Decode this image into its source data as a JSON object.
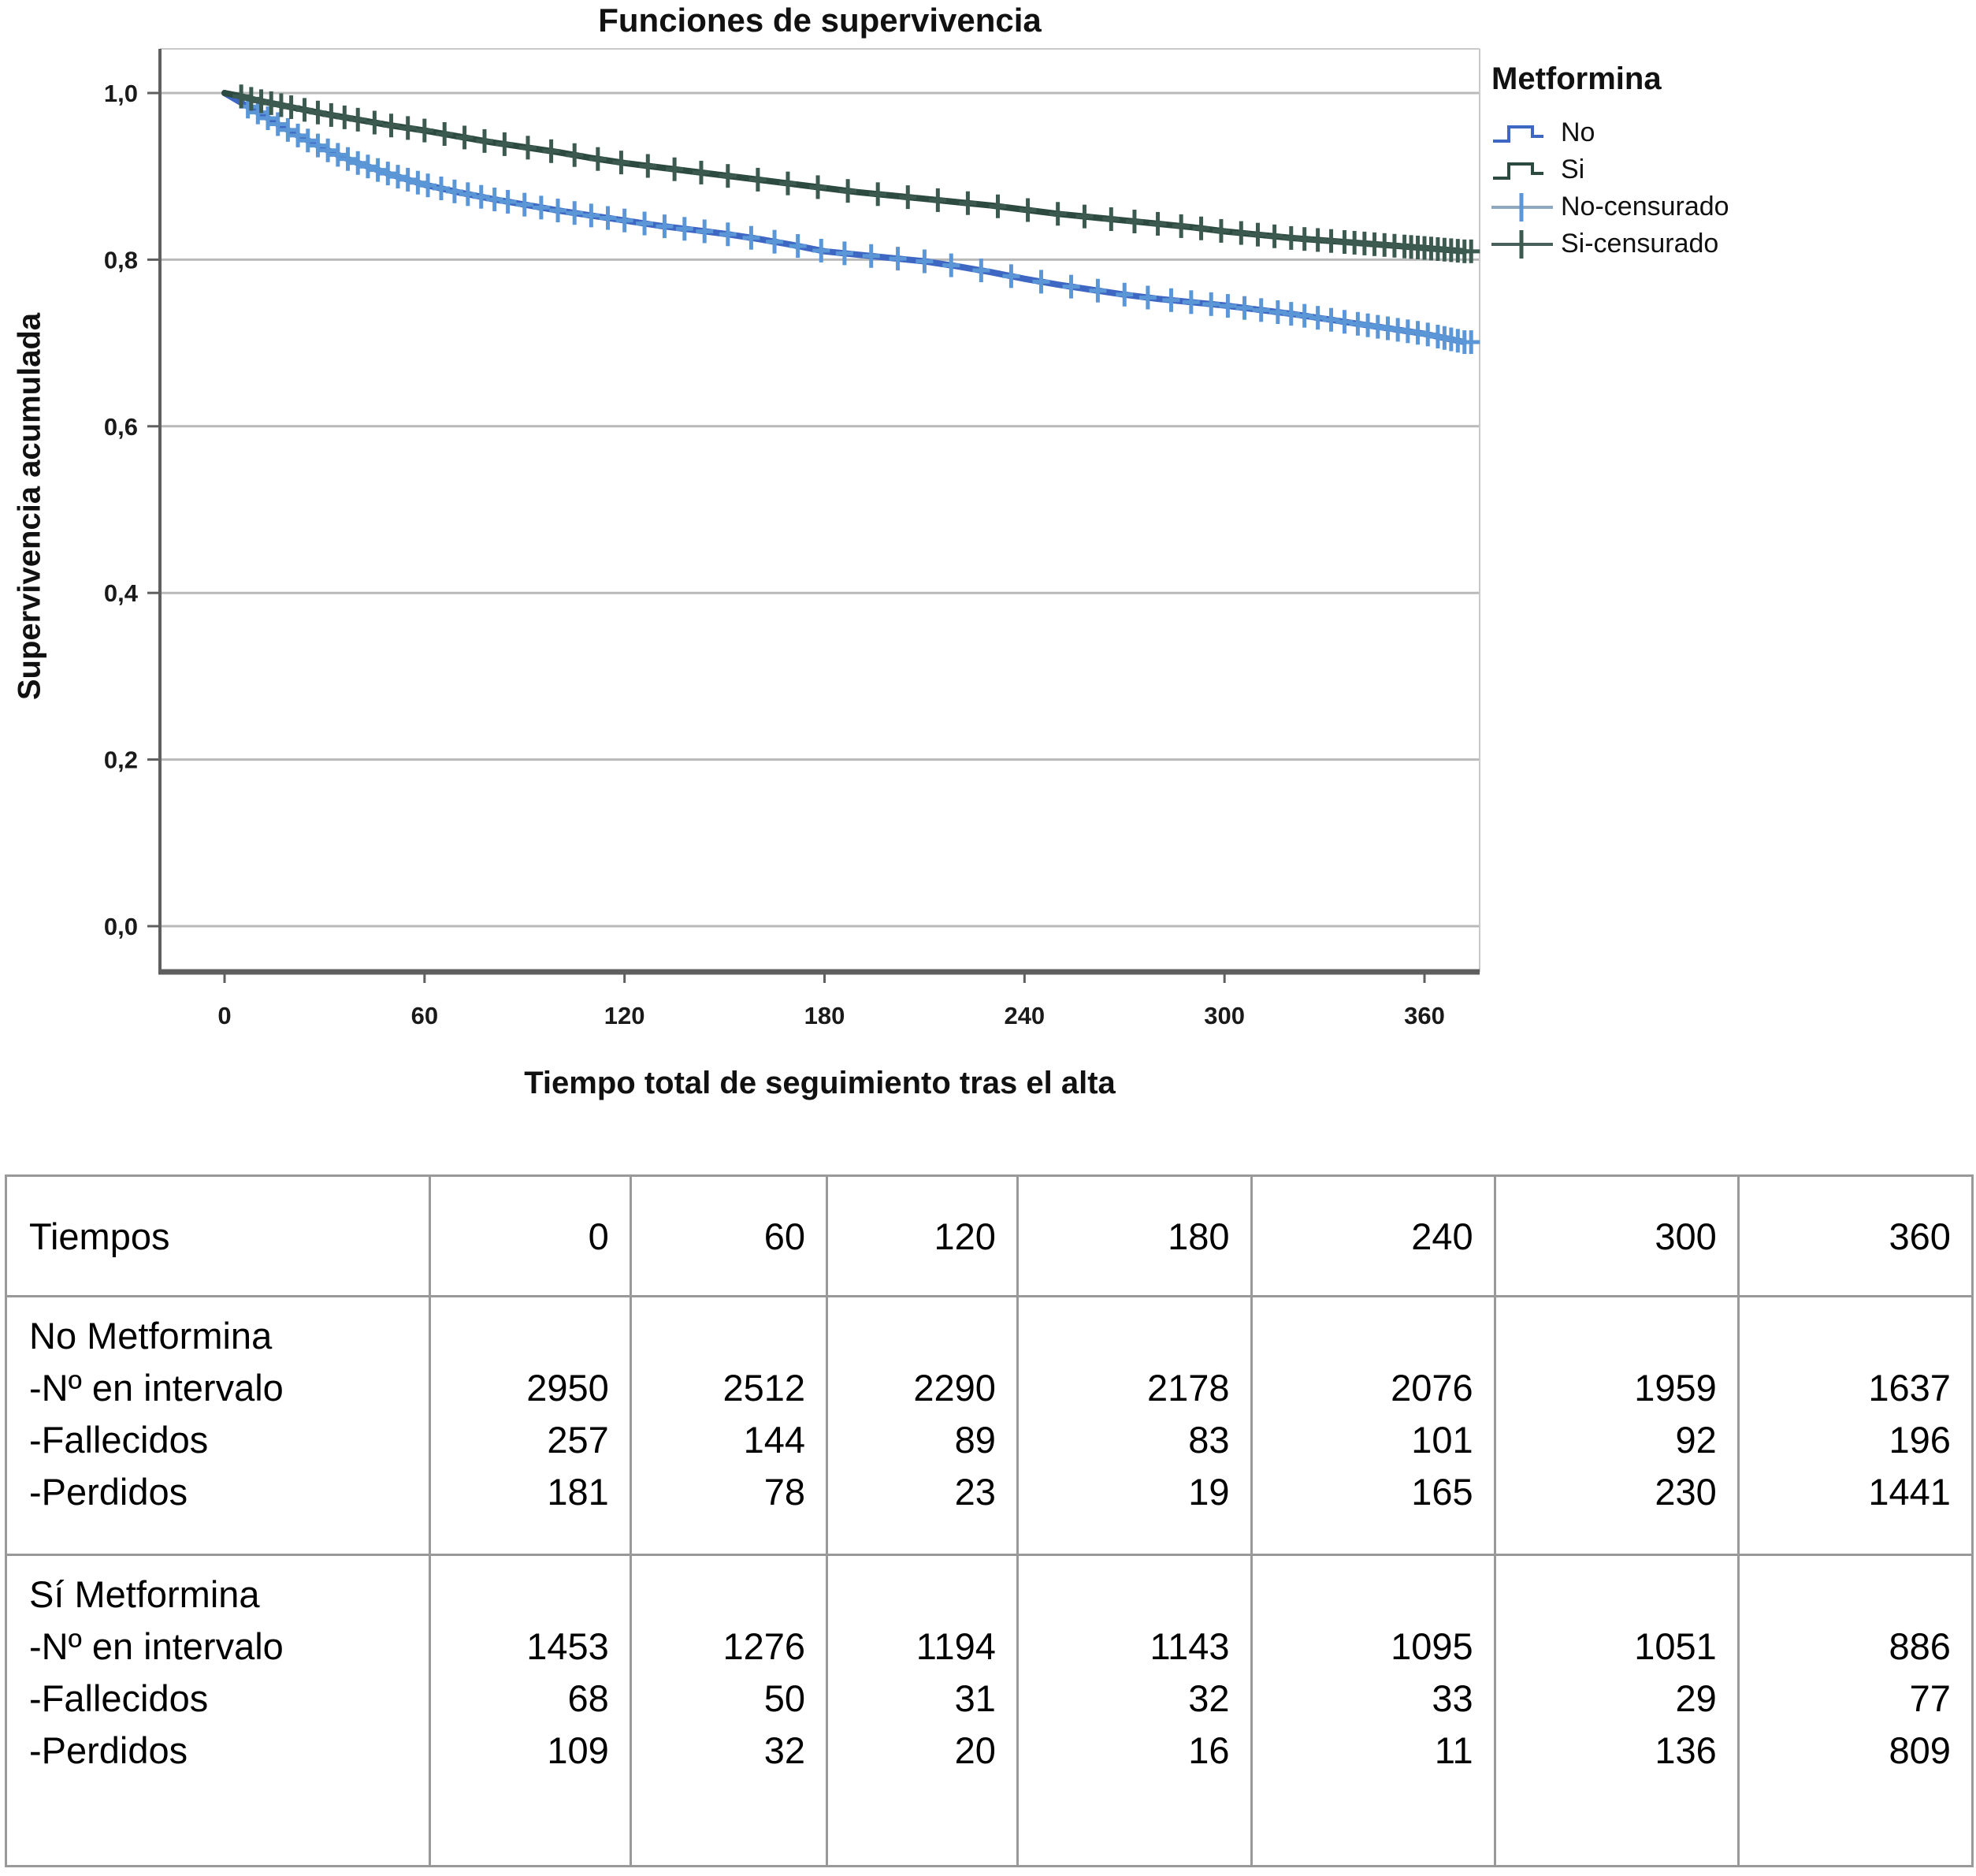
{
  "chart": {
    "title": "Funciones de supervivencia",
    "x_label": "Tiempo total de seguimiento tras el alta",
    "y_label": "Supervivencia acumulada",
    "x_ticks": [
      "0",
      "60",
      "120",
      "180",
      "240",
      "300",
      "360"
    ],
    "y_ticks": [
      {
        "value": 0.0,
        "label": "0,0"
      },
      {
        "value": 0.2,
        "label": "0,2"
      },
      {
        "value": 0.4,
        "label": "0,4"
      },
      {
        "value": 0.6,
        "label": "0,6"
      },
      {
        "value": 0.8,
        "label": "0,8"
      },
      {
        "value": 1.0,
        "label": "1,0"
      }
    ],
    "legend": {
      "title": "Metformina",
      "entries": [
        {
          "label": "No",
          "symbol": "step",
          "color": "#3E66C3"
        },
        {
          "label": "Si",
          "symbol": "step",
          "color": "#2C4A40"
        },
        {
          "label": "No-censurado",
          "symbol": "cross",
          "color": "#5B96D6",
          "line_color": "#8FA9C2"
        },
        {
          "label": "Si-censurado",
          "symbol": "cross",
          "color": "#3C5A50",
          "line_color": "#49605A"
        }
      ]
    },
    "colors": {
      "grid": "#b9b9b9",
      "frame_light": "#c9c9c9",
      "axis": "#5f5f5f",
      "tick_text": "#1a1a1a"
    }
  },
  "chart_data": {
    "type": "line",
    "subtype": "kaplan-meier-survival",
    "title": "Funciones de supervivencia",
    "xlabel": "Tiempo total de seguimiento tras el alta",
    "ylabel": "Supervivencia acumulada",
    "xlim": [
      0,
      376
    ],
    "ylim": [
      0.0,
      1.0
    ],
    "x_ticks": [
      0,
      60,
      120,
      180,
      240,
      300,
      360
    ],
    "y_ticks": [
      0.0,
      0.2,
      0.4,
      0.6,
      0.8,
      1.0
    ],
    "grid": true,
    "legend_position": "right",
    "series": [
      {
        "name": "No",
        "color": "#3E66C3",
        "censor_color": "#5B96D6",
        "points": [
          [
            0,
            1.0
          ],
          [
            3,
            0.993
          ],
          [
            6,
            0.986
          ],
          [
            9,
            0.979
          ],
          [
            12,
            0.972
          ],
          [
            15,
            0.965
          ],
          [
            18,
            0.958
          ],
          [
            21,
            0.951
          ],
          [
            24,
            0.945
          ],
          [
            27,
            0.939
          ],
          [
            30,
            0.933
          ],
          [
            35,
            0.924
          ],
          [
            40,
            0.916
          ],
          [
            45,
            0.909
          ],
          [
            50,
            0.902
          ],
          [
            55,
            0.896
          ],
          [
            60,
            0.89
          ],
          [
            70,
            0.881
          ],
          [
            80,
            0.873
          ],
          [
            90,
            0.866
          ],
          [
            100,
            0.859
          ],
          [
            110,
            0.853
          ],
          [
            120,
            0.847
          ],
          [
            130,
            0.841
          ],
          [
            140,
            0.836
          ],
          [
            150,
            0.831
          ],
          [
            160,
            0.825
          ],
          [
            170,
            0.818
          ],
          [
            180,
            0.81
          ],
          [
            190,
            0.806
          ],
          [
            200,
            0.802
          ],
          [
            210,
            0.798
          ],
          [
            220,
            0.792
          ],
          [
            230,
            0.785
          ],
          [
            240,
            0.777
          ],
          [
            250,
            0.77
          ],
          [
            260,
            0.764
          ],
          [
            270,
            0.758
          ],
          [
            280,
            0.753
          ],
          [
            290,
            0.749
          ],
          [
            300,
            0.745
          ],
          [
            310,
            0.74
          ],
          [
            320,
            0.735
          ],
          [
            330,
            0.729
          ],
          [
            340,
            0.723
          ],
          [
            350,
            0.717
          ],
          [
            360,
            0.711
          ],
          [
            366,
            0.706
          ],
          [
            372,
            0.701
          ]
        ],
        "censor_times": [
          7,
          10,
          13,
          16,
          19,
          22,
          25,
          28,
          31,
          34,
          37,
          40,
          43,
          46,
          49,
          52,
          55,
          58,
          61,
          65,
          69,
          73,
          77,
          81,
          85,
          90,
          95,
          100,
          105,
          110,
          115,
          120,
          126,
          132,
          138,
          144,
          151,
          158,
          165,
          172,
          179,
          186,
          194,
          202,
          210,
          218,
          227,
          236,
          245,
          254,
          262,
          270,
          277,
          284,
          290,
          296,
          301,
          306,
          311,
          316,
          320,
          324,
          328,
          332,
          336,
          340,
          343,
          346,
          349,
          352,
          355,
          358,
          361,
          364,
          366,
          368,
          370,
          372,
          374
        ]
      },
      {
        "name": "Si",
        "color": "#2C4A40",
        "censor_color": "#3C5A50",
        "points": [
          [
            0,
            1.0
          ],
          [
            5,
            0.996
          ],
          [
            10,
            0.991
          ],
          [
            15,
            0.987
          ],
          [
            20,
            0.983
          ],
          [
            25,
            0.979
          ],
          [
            30,
            0.975
          ],
          [
            40,
            0.968
          ],
          [
            50,
            0.961
          ],
          [
            60,
            0.955
          ],
          [
            70,
            0.948
          ],
          [
            80,
            0.941
          ],
          [
            90,
            0.935
          ],
          [
            100,
            0.929
          ],
          [
            110,
            0.922
          ],
          [
            120,
            0.916
          ],
          [
            130,
            0.911
          ],
          [
            140,
            0.906
          ],
          [
            150,
            0.901
          ],
          [
            160,
            0.896
          ],
          [
            170,
            0.891
          ],
          [
            180,
            0.886
          ],
          [
            190,
            0.881
          ],
          [
            200,
            0.877
          ],
          [
            210,
            0.873
          ],
          [
            220,
            0.869
          ],
          [
            230,
            0.865
          ],
          [
            240,
            0.86
          ],
          [
            250,
            0.855
          ],
          [
            260,
            0.851
          ],
          [
            270,
            0.847
          ],
          [
            280,
            0.843
          ],
          [
            290,
            0.839
          ],
          [
            300,
            0.834
          ],
          [
            310,
            0.83
          ],
          [
            320,
            0.826
          ],
          [
            330,
            0.823
          ],
          [
            340,
            0.82
          ],
          [
            350,
            0.817
          ],
          [
            360,
            0.814
          ],
          [
            366,
            0.812
          ],
          [
            372,
            0.81
          ]
        ],
        "censor_times": [
          5,
          8,
          11,
          14,
          17,
          20,
          24,
          28,
          32,
          36,
          40,
          45,
          50,
          55,
          60,
          66,
          72,
          78,
          84,
          91,
          98,
          105,
          112,
          119,
          127,
          135,
          143,
          151,
          160,
          169,
          178,
          187,
          196,
          205,
          214,
          223,
          232,
          241,
          250,
          258,
          266,
          273,
          280,
          287,
          293,
          299,
          305,
          310,
          315,
          320,
          324,
          328,
          332,
          336,
          339,
          342,
          345,
          348,
          351,
          354,
          356,
          358,
          360,
          362,
          364,
          366,
          368,
          370,
          372,
          374
        ]
      }
    ]
  },
  "table": {
    "header": {
      "label": "Tiempos",
      "values": [
        "0",
        "60",
        "120",
        "180",
        "240",
        "300",
        "360"
      ]
    },
    "groups": [
      {
        "name": "No Metformina",
        "rows": [
          {
            "label": "-Nº en intervalo",
            "values": [
              "2950",
              "2512",
              "2290",
              "2178",
              "2076",
              "1959",
              "1637"
            ]
          },
          {
            "label": "-Fallecidos",
            "values": [
              "257",
              "144",
              "89",
              "83",
              "101",
              "92",
              "196"
            ]
          },
          {
            "label": "-Perdidos",
            "values": [
              "181",
              "78",
              "23",
              "19",
              "165",
              "230",
              "1441"
            ]
          }
        ]
      },
      {
        "name": "Sí Metformina",
        "rows": [
          {
            "label": "-Nº en intervalo",
            "values": [
              "1453",
              "1276",
              "1194",
              "1143",
              "1095",
              "1051",
              "886"
            ]
          },
          {
            "label": "-Fallecidos",
            "values": [
              "68",
              "50",
              "31",
              "32",
              "33",
              "29",
              "77"
            ]
          },
          {
            "label": "-Perdidos",
            "values": [
              "109",
              "32",
              "20",
              "16",
              "11",
              "136",
              "809"
            ]
          }
        ]
      }
    ]
  }
}
